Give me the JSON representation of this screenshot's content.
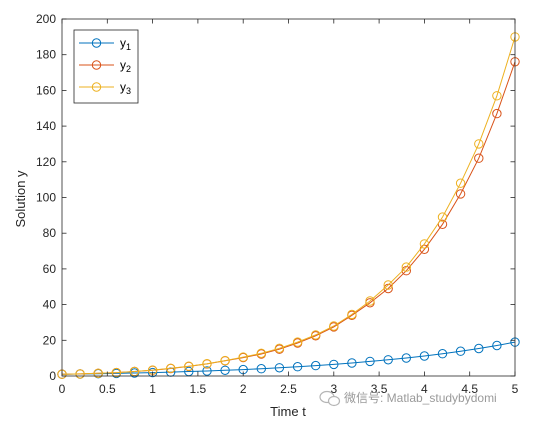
{
  "chart_data": {
    "type": "line",
    "xlabel": "Time t",
    "ylabel": "Solution y",
    "xlim": [
      0,
      5
    ],
    "ylim": [
      0,
      200
    ],
    "xticks": [
      "0",
      "0.5",
      "1",
      "1.5",
      "2",
      "2.5",
      "3",
      "3.5",
      "4",
      "4.5",
      "5"
    ],
    "yticks": [
      "0",
      "20",
      "40",
      "60",
      "80",
      "100",
      "120",
      "140",
      "160",
      "180",
      "200"
    ],
    "grid": false,
    "legend_position": "top-left",
    "x": [
      0,
      0.2,
      0.4,
      0.6,
      0.8,
      1.0,
      1.2,
      1.4,
      1.6,
      1.8,
      2.0,
      2.2,
      2.4,
      2.6,
      2.8,
      3.0,
      3.2,
      3.4,
      3.6,
      3.8,
      4.0,
      4.2,
      4.4,
      4.6,
      4.8,
      5.0
    ],
    "series": [
      {
        "name": "y",
        "sub": "1",
        "color": "#0072BD",
        "values": [
          1.0,
          1.13,
          1.29,
          1.47,
          1.68,
          1.92,
          2.2,
          2.5,
          2.8,
          3.2,
          3.6,
          4.1,
          4.6,
          5.2,
          5.8,
          6.5,
          7.3,
          8.2,
          9.1,
          10.1,
          11.2,
          12.5,
          13.9,
          15.4,
          17.1,
          19.0
        ]
      },
      {
        "name": "y",
        "sub": "2",
        "color": "#D95319",
        "values": [
          1.0,
          1.2,
          1.5,
          1.9,
          2.5,
          3.2,
          4.2,
          5.4,
          6.8,
          8.5,
          10.3,
          12.3,
          15.0,
          18.5,
          22.5,
          27.5,
          34.0,
          41.0,
          49.0,
          59.0,
          71.0,
          85.0,
          102.0,
          122.0,
          147.0,
          176.0
        ]
      },
      {
        "name": "y",
        "sub": "3",
        "color": "#EDB120",
        "values": [
          1.0,
          1.2,
          1.5,
          1.9,
          2.5,
          3.3,
          4.3,
          5.5,
          6.9,
          8.6,
          10.6,
          12.7,
          15.5,
          19.0,
          23.0,
          28.0,
          34.5,
          42.0,
          51.0,
          61.0,
          74.0,
          89.0,
          108.0,
          130.0,
          157.0,
          190.0
        ]
      }
    ]
  },
  "watermark": "微信号: Matlab_studybydomi"
}
